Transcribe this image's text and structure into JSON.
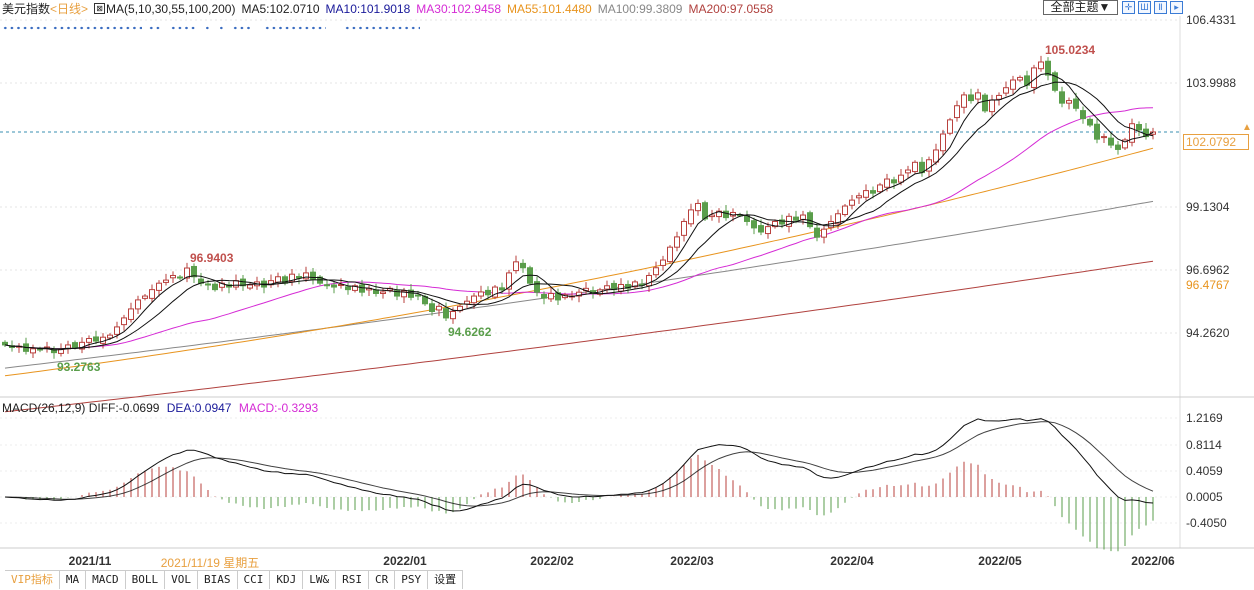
{
  "header": {
    "symbol": "美元指数",
    "period": "<日线>",
    "ma_params": "MA(5,10,30,55,100,200)",
    "ma5": "MA5:102.0710",
    "ma10": "MA10:101.9018",
    "ma30": "MA30:102.9458",
    "ma55": "MA55:101.4480",
    "ma100": "MA100:99.3809",
    "ma200": "MA200:97.0558",
    "theme_select": "全部主题▼",
    "tool_icons": [
      "crosshair-icon",
      "zoom-in-icon",
      "zoom-out-icon",
      "move-right-icon"
    ]
  },
  "colors": {
    "ma5": "#111111",
    "ma10": "#111111",
    "ma30": "#d52bd5",
    "ma55": "#e8941e",
    "ma100": "#888888",
    "ma200": "#b0413e",
    "up": "#b9413e",
    "down": "#5a9e4b",
    "accent": "#e8a040",
    "macd_dea": "#d52bd5"
  },
  "price_axis": [
    "106.4331",
    "103.9988",
    "99.1304",
    "96.6962",
    "94.2620"
  ],
  "current_price": "102.0792",
  "ma55_label": "96.4767",
  "annotations": {
    "high": "105.0234",
    "local_high": "96.9403",
    "local_low": "94.6262",
    "low": "93.2763"
  },
  "macd": {
    "title": "MACD(26,12,9)",
    "diff": "DIFF:-0.0699",
    "dea": "DEA:0.0947",
    "macd": "MACD:-0.3293",
    "axis": [
      "1.2169",
      "0.8114",
      "0.4059",
      "0.0005",
      "-0.4050"
    ]
  },
  "dates": {
    "d1": "2021/11",
    "cursor": "2021/11/19 星期五",
    "d2": "2022/01",
    "d3": "2022/02",
    "d4": "2022/03",
    "d5": "2022/04",
    "d6": "2022/05",
    "d7": "2022/06"
  },
  "tabs": [
    "VIP指标",
    "MA",
    "MACD",
    "BOLL",
    "VOL",
    "BIAS",
    "CCI",
    "KDJ",
    "LW&",
    "RSI",
    "CR",
    "PSY",
    "设置"
  ],
  "chart_data": {
    "type": "candlestick",
    "ylim": [
      91.0,
      106.4331
    ],
    "closes": [
      93.8,
      93.7,
      93.75,
      93.55,
      93.65,
      93.6,
      93.72,
      93.5,
      93.62,
      93.8,
      93.7,
      93.9,
      94.05,
      93.95,
      94.1,
      94.18,
      94.5,
      94.85,
      95.2,
      95.55,
      95.7,
      95.95,
      96.2,
      96.32,
      96.5,
      96.4,
      96.79,
      96.45,
      96.2,
      96.13,
      95.95,
      96.2,
      96.05,
      96.3,
      96.1,
      96.13,
      96.25,
      96.05,
      96.3,
      96.45,
      96.2,
      96.55,
      96.4,
      96.6,
      96.35,
      96.2,
      96.13,
      96.05,
      96.15,
      95.95,
      96.1,
      95.85,
      96.0,
      95.8,
      95.86,
      96.0,
      95.7,
      95.9,
      95.65,
      95.74,
      95.4,
      95.1,
      95.3,
      94.85,
      95.1,
      95.3,
      95.5,
      95.7,
      95.86,
      95.75,
      96.05,
      95.94,
      96.6,
      97.03,
      96.8,
      96.2,
      95.85,
      95.62,
      95.8,
      95.55,
      95.75,
      95.7,
      95.85,
      96.0,
      95.8,
      95.94,
      96.1,
      95.95,
      96.15,
      96.0,
      96.25,
      96.13,
      96.5,
      96.8,
      97.1,
      97.6,
      98.0,
      98.6,
      99.05,
      99.3,
      98.7,
      98.85,
      99.0,
      98.75,
      98.95,
      98.85,
      98.6,
      98.35,
      98.19,
      98.4,
      98.6,
      98.5,
      98.8,
      98.65,
      98.85,
      98.4,
      97.99,
      98.3,
      98.6,
      98.9,
      99.2,
      99.43,
      99.6,
      99.8,
      99.7,
      100.02,
      100.25,
      100.1,
      100.4,
      100.6,
      100.9,
      100.5,
      101.0,
      101.38,
      102.0,
      102.55,
      103.1,
      103.52,
      103.3,
      103.6,
      102.9,
      103.32,
      103.5,
      103.8,
      104.1,
      104.2,
      103.9,
      104.57,
      104.8,
      104.29,
      103.7,
      103.2,
      103.3,
      103.0,
      102.6,
      102.35,
      101.8,
      101.9,
      101.57,
      101.4,
      101.77,
      102.4,
      102.16,
      101.9,
      102.08
    ],
    "ma55_range": [
      92.6,
      101.448
    ],
    "ma100_range": [
      92.9,
      99.3809
    ],
    "ma200_range": [
      91.2,
      97.0558
    ]
  }
}
